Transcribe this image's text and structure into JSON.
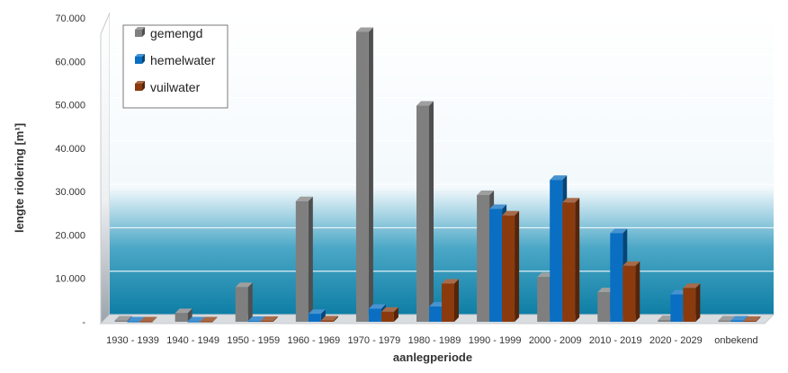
{
  "chart_data": {
    "type": "bar",
    "title": "",
    "xlabel": "aanlegperiode",
    "ylabel": "lengte riolering [m¹]",
    "categories": [
      "1930 - 1939",
      "1940 - 1949",
      "1950 - 1959",
      "1960 - 1969",
      "1970 - 1979",
      "1980 - 1989",
      "1990 - 1999",
      "2000 - 2009",
      "2010 - 2019",
      "2020 - 2029",
      "onbekend"
    ],
    "series": [
      {
        "name": "gemengd",
        "color": "#7f7f7f",
        "values": [
          300,
          2000,
          8000,
          27800,
          66800,
          49800,
          29200,
          10300,
          6800,
          400,
          300
        ]
      },
      {
        "name": "hemelwater",
        "color": "#0a6fc2",
        "values": [
          100,
          100,
          200,
          1800,
          3000,
          3500,
          26000,
          32700,
          20400,
          6300,
          300
        ]
      },
      {
        "name": "vuilwater",
        "color": "#8b3a0e",
        "values": [
          100,
          100,
          200,
          300,
          2300,
          8800,
          24500,
          27500,
          12900,
          7800,
          200
        ]
      }
    ],
    "ylim": [
      0,
      70000
    ],
    "yticks": [
      {
        "value": 0,
        "label": "-"
      },
      {
        "value": 10000,
        "label": "10.000"
      },
      {
        "value": 20000,
        "label": "20.000"
      },
      {
        "value": 30000,
        "label": "30.000"
      },
      {
        "value": 40000,
        "label": "40.000"
      },
      {
        "value": 50000,
        "label": "50.000"
      },
      {
        "value": 60000,
        "label": "60.000"
      },
      {
        "value": 70000,
        "label": "70.000"
      }
    ],
    "grid": true,
    "legend": "top-left"
  }
}
